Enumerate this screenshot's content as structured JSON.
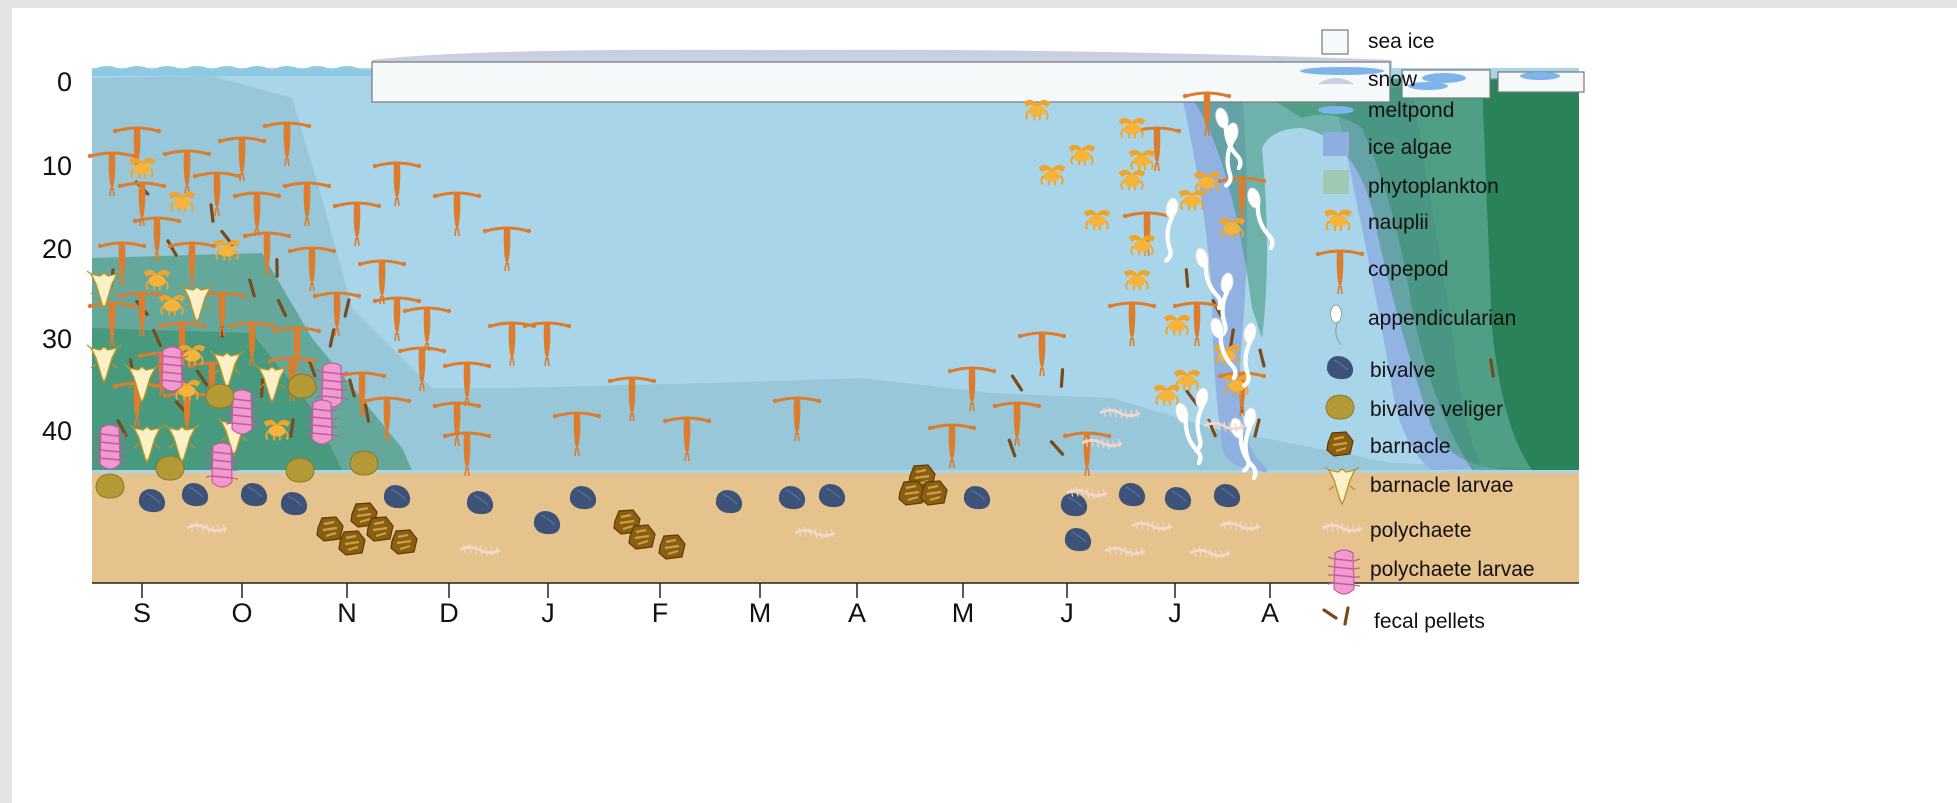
{
  "diagram": {
    "depth_ticks": [
      "0",
      "10",
      "20",
      "30",
      "40"
    ],
    "month_ticks": [
      "S",
      "O",
      "N",
      "D",
      "J",
      "F",
      "M",
      "A",
      "M",
      "J",
      "J",
      "A"
    ]
  },
  "legend": {
    "items": [
      {
        "label": "sea ice",
        "icon": "sea-ice-swatch"
      },
      {
        "label": "snow",
        "icon": "snow-swatch"
      },
      {
        "label": "meltpond",
        "icon": "meltpond-swatch"
      },
      {
        "label": "ice algae",
        "icon": "ice-algae-swatch"
      },
      {
        "label": "phytoplankton",
        "icon": "phytoplankton-swatch"
      },
      {
        "label": "nauplii",
        "icon": "nauplii-icon"
      },
      {
        "label": "copepod",
        "icon": "copepod-icon"
      },
      {
        "label": "appendicularian",
        "icon": "appendicularian-icon"
      },
      {
        "label": "bivalve",
        "icon": "bivalve-icon"
      },
      {
        "label": "bivalve veliger",
        "icon": "bivalve-veliger-icon"
      },
      {
        "label": "barnacle",
        "icon": "barnacle-icon"
      },
      {
        "label": "barnacle larvae",
        "icon": "barnacle-larvae-icon"
      },
      {
        "label": "polychaete",
        "icon": "polychaete-icon"
      },
      {
        "label": "polychaete larvae",
        "icon": "polychaete-larvae-icon"
      },
      {
        "label": "fecal pellets",
        "icon": "fecal-pellets-icon"
      }
    ]
  },
  "colors": {
    "water": "#a9d5ea",
    "sediment": "#e6c28c",
    "phytoplankton": "#3f9676",
    "ice_algae": "#8eaee0",
    "sea_ice": "#f6f9fa",
    "snow": "#c8cfe2",
    "meltpond": "#7fb4ea",
    "copepod": "#dc7c2c",
    "nauplii": "#f0a42a",
    "bivalve": "#3d5278",
    "bivalve_veliger": "#b39a36",
    "barnacle": "#8c5e10",
    "barnacle_larvae": "#fbf0c6",
    "polychaete": "#f3d6cc",
    "polychaete_larvae": "#f09ad0",
    "fecal_pellets": "#7a4a1a"
  }
}
